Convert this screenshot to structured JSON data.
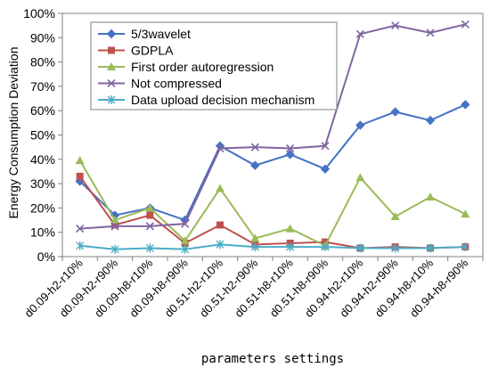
{
  "chart_data": {
    "type": "line",
    "title": "",
    "xlabel": "parameters settings",
    "ylabel": "Energy Consumption Deviation",
    "ylim": [
      0,
      100
    ],
    "ytick_labels": [
      "0%",
      "10%",
      "20%",
      "30%",
      "40%",
      "50%",
      "60%",
      "70%",
      "80%",
      "90%",
      "100%"
    ],
    "y_unit": "%",
    "grid": false,
    "legend_position": "top-left",
    "categories": [
      "d0.09-h2-r10%",
      "d0.09-h2-r90%",
      "d0.09-h8-r10%",
      "d0.09-h8-r90%",
      "d0.51-h2-r10%",
      "d0.51-h2-r90%",
      "d0.51-h8-r10%",
      "d0.51-h8-r90%",
      "d0.94-h2-r10%",
      "d0.94-h2-r90%",
      "d0.94-h8-r10%",
      "d0.94-h8-r90%"
    ],
    "series": [
      {
        "name": "5/3wavelet",
        "color": "#4472C4",
        "marker": "diamond",
        "values": [
          31,
          17,
          20,
          15,
          45.5,
          37.5,
          42,
          36,
          54,
          59.5,
          56,
          62.5
        ]
      },
      {
        "name": "GDPLA",
        "color": "#C0504D",
        "marker": "square",
        "values": [
          33,
          13,
          17,
          5.5,
          13,
          5,
          5.5,
          6,
          3.5,
          4,
          3.5,
          4
        ]
      },
      {
        "name": "First order autoregression",
        "color": "#9BBB59",
        "marker": "triangle",
        "values": [
          39.5,
          15,
          20,
          6.5,
          28,
          7.5,
          11.5,
          4.5,
          32.5,
          16.5,
          24.5,
          17.5
        ]
      },
      {
        "name": "Not compressed",
        "color": "#8064A2",
        "marker": "x",
        "values": [
          11.5,
          12.5,
          12.5,
          13.5,
          44.5,
          45,
          44.5,
          45.5,
          91.5,
          95,
          92,
          95.5
        ]
      },
      {
        "name": "Data upload decision mechanism",
        "color": "#4BACC6",
        "marker": "star",
        "values": [
          4.5,
          3,
          3.5,
          3,
          5,
          4,
          4,
          4,
          3.5,
          3.5,
          3.5,
          4
        ]
      }
    ]
  }
}
